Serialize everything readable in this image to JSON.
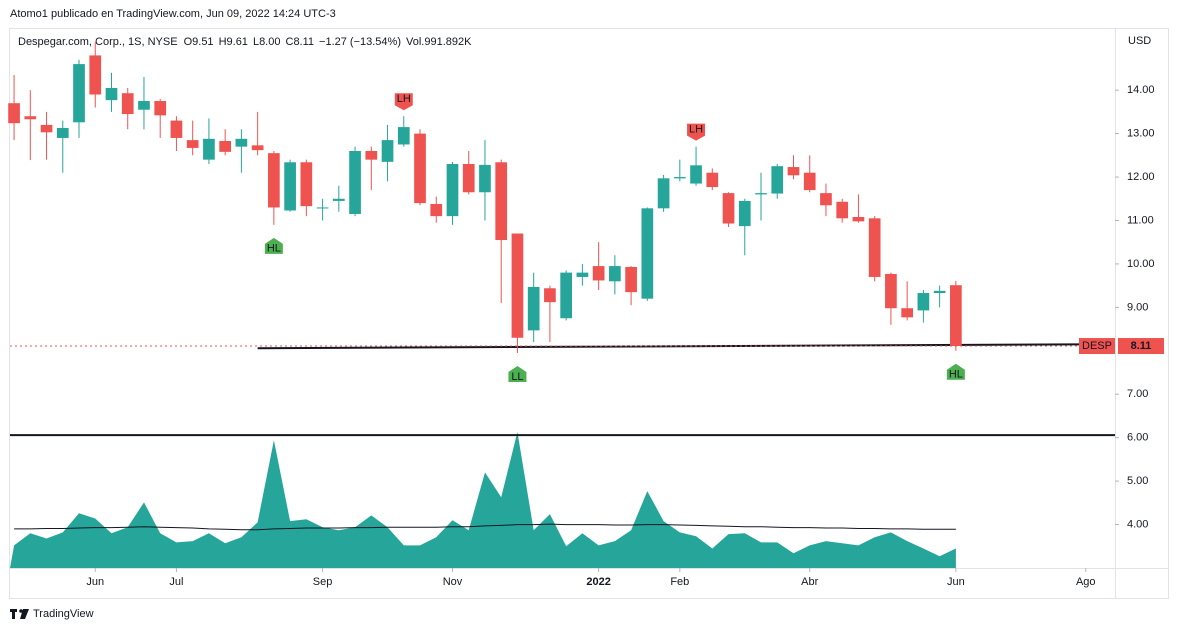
{
  "header": {
    "title": "Atomo1 publicado en TradingView.com, Jun 09, 2022 14:24 UTC-3"
  },
  "footer": {
    "brand": "TradingView"
  },
  "chart_data": {
    "type": "candlestick",
    "legend": {
      "symbol": "Despegar.com, Corp., 1S, NYSE",
      "items": [
        {
          "label": "O",
          "value": "9.51"
        },
        {
          "label": "H",
          "value": "9.61"
        },
        {
          "label": "L",
          "value": "8.00"
        },
        {
          "label": "C",
          "value": "8.11"
        },
        {
          "label": "",
          "value": "−1.27 (−13.54%)"
        },
        {
          "label": "Vol.",
          "value": "991.892K"
        }
      ]
    },
    "y_axis_label": "USD",
    "ticker": "DESP",
    "up_color": "#26a69a",
    "down_color": "#ef5350",
    "volume_color": "#26a69a",
    "ma_color": "#131722",
    "xlim": [
      -0.25,
      67.8
    ],
    "ylim": [
      3,
      15.385
    ],
    "xticks": [
      {
        "value": 5,
        "label": "Jun"
      },
      {
        "value": 10,
        "label": "Jul"
      },
      {
        "value": 19,
        "label": "Sep"
      },
      {
        "value": 27,
        "label": "Nov"
      },
      {
        "value": 36,
        "label": "2022"
      },
      {
        "value": 41,
        "label": "Feb"
      },
      {
        "value": 49,
        "label": "Abr"
      },
      {
        "value": 58,
        "label": "Jun"
      },
      {
        "value": 66,
        "label": "Ago"
      }
    ],
    "yticks": [
      {
        "value": 14,
        "label": "14.00"
      },
      {
        "value": 13,
        "label": "13.00"
      },
      {
        "value": 12,
        "label": "12.00"
      },
      {
        "value": 11,
        "label": "11.00"
      },
      {
        "value": 10,
        "label": "10.00"
      },
      {
        "value": 9,
        "label": "9.00"
      },
      {
        "value": 7,
        "label": "7.00"
      },
      {
        "value": 6,
        "label": "6.00"
      },
      {
        "value": 5,
        "label": "5.00"
      },
      {
        "value": 4,
        "label": "4.00"
      }
    ],
    "candles": {
      "open": [
        13.7,
        13.4,
        13.2,
        12.9,
        13.26,
        14.8,
        13.77,
        13.93,
        13.55,
        13.75,
        13.3,
        12.85,
        12.4,
        12.83,
        12.7,
        12.73,
        12.55,
        11.23,
        12.34,
        11.28,
        11.45,
        11.15,
        12.6,
        12.35,
        12.75,
        13.0,
        11.38,
        11.1,
        12.3,
        11.65,
        12.34,
        10.7,
        8.47,
        9.44,
        8.75,
        9.7,
        9.95,
        9.6,
        9.93,
        9.2,
        11.28,
        11.97,
        11.85,
        12.1,
        11.63,
        10.87,
        11.6,
        11.62,
        12.23,
        12.1,
        11.63,
        11.43,
        11.08,
        11.05,
        9.77,
        8.98,
        8.93,
        9.33,
        9.51
      ],
      "high": [
        14.35,
        14.0,
        13.5,
        13.3,
        14.7,
        15.1,
        14.4,
        14.05,
        14.3,
        13.8,
        13.4,
        13.3,
        13.35,
        13.1,
        13.1,
        13.5,
        12.6,
        12.4,
        12.4,
        11.5,
        11.8,
        12.7,
        12.7,
        13.2,
        13.4,
        13.1,
        11.55,
        12.35,
        12.6,
        12.85,
        12.4,
        10.7,
        9.8,
        9.5,
        9.85,
        10.0,
        10.5,
        10.2,
        9.95,
        11.3,
        12.05,
        12.4,
        12.7,
        12.2,
        11.65,
        11.5,
        12.1,
        12.3,
        12.5,
        12.5,
        11.85,
        11.5,
        11.6,
        11.1,
        9.8,
        9.6,
        9.4,
        9.5,
        9.61
      ],
      "low": [
        12.85,
        12.39,
        12.4,
        12.1,
        12.9,
        13.6,
        13.5,
        13.1,
        13.1,
        12.9,
        12.6,
        12.5,
        12.3,
        12.5,
        12.1,
        12.5,
        10.9,
        11.2,
        11.1,
        11.0,
        11.2,
        11.1,
        11.7,
        11.9,
        12.7,
        11.35,
        10.95,
        10.9,
        11.6,
        11.0,
        9.1,
        7.95,
        8.2,
        8.2,
        8.7,
        9.5,
        9.4,
        9.3,
        9.05,
        9.15,
        11.2,
        11.9,
        11.8,
        11.7,
        10.85,
        10.2,
        11.0,
        11.5,
        11.95,
        11.65,
        11.1,
        10.95,
        10.95,
        9.6,
        8.6,
        8.7,
        8.65,
        9.0,
        8.0
      ],
      "close": [
        13.24,
        13.33,
        13.03,
        13.13,
        14.6,
        13.9,
        14.05,
        13.45,
        13.75,
        13.42,
        12.9,
        12.67,
        12.88,
        12.58,
        12.88,
        12.62,
        11.3,
        12.34,
        11.33,
        11.3,
        11.5,
        12.6,
        12.4,
        12.85,
        13.15,
        11.4,
        11.1,
        12.3,
        11.65,
        12.28,
        10.55,
        8.3,
        9.47,
        9.12,
        9.8,
        9.8,
        9.62,
        9.95,
        9.35,
        11.28,
        11.97,
        12.0,
        12.27,
        11.77,
        10.93,
        11.45,
        11.63,
        12.25,
        12.04,
        11.7,
        11.35,
        11.05,
        10.98,
        9.7,
        8.98,
        8.77,
        9.33,
        9.38,
        8.11
      ]
    },
    "volume": [
      3.52,
      3.8,
      3.68,
      3.82,
      4.26,
      4.14,
      3.8,
      3.94,
      4.51,
      3.8,
      3.59,
      3.62,
      3.8,
      3.57,
      3.71,
      4.05,
      5.94,
      4.08,
      4.12,
      3.94,
      3.87,
      3.94,
      4.21,
      3.94,
      3.52,
      3.52,
      3.71,
      4.1,
      3.87,
      5.2,
      4.63,
      6.13,
      3.87,
      4.24,
      3.5,
      3.8,
      3.52,
      3.62,
      3.87,
      4.77,
      4.08,
      3.82,
      3.73,
      3.45,
      3.78,
      3.8,
      3.59,
      3.59,
      3.34,
      3.52,
      3.62,
      3.57,
      3.52,
      3.71,
      3.82,
      3.62,
      3.45,
      3.27,
      3.45
    ],
    "volume_ma": [
      3.9,
      3.9,
      3.91,
      3.91,
      3.92,
      3.93,
      3.93,
      3.94,
      3.95,
      3.94,
      3.93,
      3.92,
      3.9,
      3.89,
      3.88,
      3.88,
      3.9,
      3.91,
      3.92,
      3.92,
      3.92,
      3.93,
      3.93,
      3.94,
      3.94,
      3.94,
      3.94,
      3.95,
      3.95,
      3.97,
      3.98,
      4.0,
      4.0,
      4.01,
      4.0,
      4.0,
      4.0,
      3.99,
      3.99,
      4.0,
      4.0,
      3.99,
      3.98,
      3.97,
      3.96,
      3.95,
      3.95,
      3.94,
      3.93,
      3.93,
      3.92,
      3.92,
      3.91,
      3.91,
      3.9,
      3.9,
      3.89,
      3.89,
      3.89
    ],
    "trendlines": [
      {
        "x": [
          15,
          66.9
        ],
        "y": [
          8.06,
          8.15
        ],
        "color": "#131722"
      },
      {
        "x": [
          -0.25,
          67.8
        ],
        "y": [
          6.06,
          6.06
        ],
        "color": "#131722"
      }
    ],
    "markers": [
      {
        "index": 16,
        "label": "HL",
        "position": "below",
        "color": "#4caf50"
      },
      {
        "index": 24,
        "label": "LH",
        "position": "above",
        "color": "#ef5350"
      },
      {
        "index": 31,
        "label": "LL",
        "position": "below",
        "color": "#4caf50"
      },
      {
        "index": 42,
        "label": "LH",
        "position": "above",
        "color": "#ef5350"
      },
      {
        "index": 58,
        "label": "HL",
        "position": "below",
        "color": "#4caf50"
      }
    ]
  }
}
